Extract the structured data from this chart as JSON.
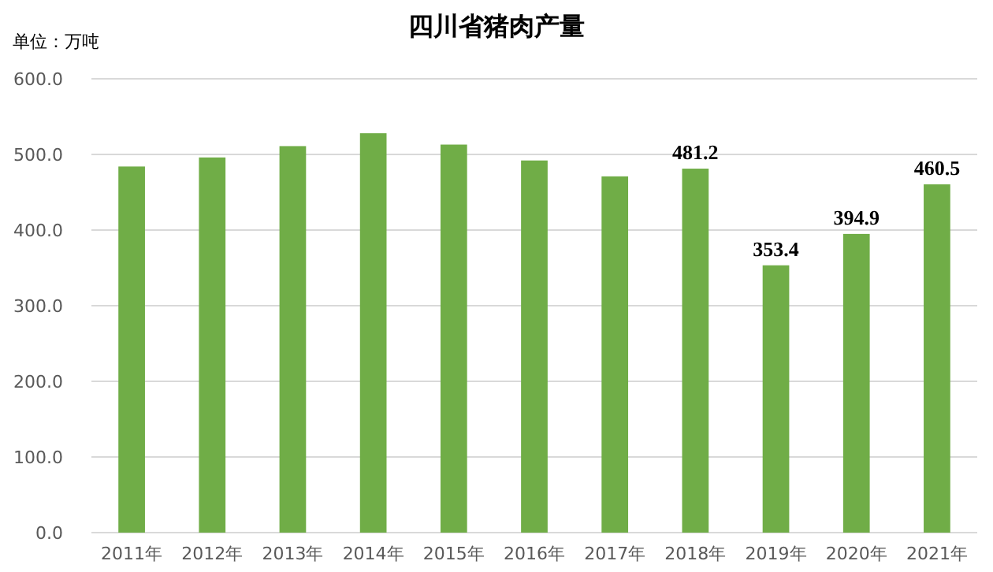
{
  "chart_data": {
    "type": "bar",
    "title": "四川省猪肉产量",
    "ylabel": "单位：万吨",
    "categories": [
      "2011年",
      "2012年",
      "2013年",
      "2014年",
      "2015年",
      "2016年",
      "2017年",
      "2018年",
      "2019年",
      "2020年",
      "2021年"
    ],
    "values": [
      484,
      496,
      511,
      528,
      513,
      492,
      471,
      481.2,
      353.4,
      394.9,
      460.5
    ],
    "value_labels": [
      null,
      null,
      null,
      null,
      null,
      null,
      null,
      "481.2",
      "353.4",
      "394.9",
      "460.5"
    ],
    "color": "#70ad47",
    "ylim": [
      0,
      600
    ],
    "yticks": [
      {
        "value": 0,
        "label": "0.0"
      },
      {
        "value": 100,
        "label": "100.0"
      },
      {
        "value": 200,
        "label": "200.0"
      },
      {
        "value": 300,
        "label": "300.0"
      },
      {
        "value": 400,
        "label": "400.0"
      },
      {
        "value": 500,
        "label": "500.0"
      },
      {
        "value": 600,
        "label": "600.0"
      }
    ],
    "grid": "y"
  }
}
